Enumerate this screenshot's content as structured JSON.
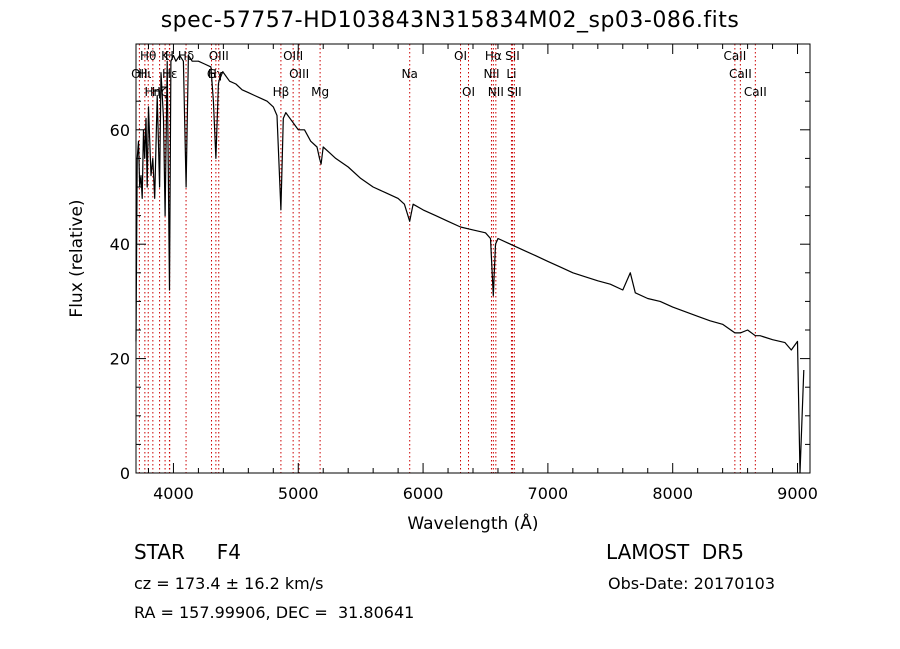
{
  "header": {
    "title": "spec-57757-HD103843N315834M02_sp03-086.fits"
  },
  "info": {
    "class": "STAR     F4",
    "survey": "LAMOST  DR5",
    "cz": "cz = 173.4 ± 16.2 km/s",
    "obs_date": "Obs-Date: 20170103",
    "radec": "RA = 157.99906, DEC =  31.80641"
  },
  "colors": {
    "spectrum": "#000000",
    "lines": "#cc0000",
    "axes": "#000000"
  },
  "chart_data": {
    "type": "line",
    "xlabel": "Wavelength (Å)",
    "ylabel": "Flux (relative)",
    "xlim": [
      3700,
      9100
    ],
    "ylim": [
      0,
      75
    ],
    "xticks": [
      4000,
      5000,
      6000,
      7000,
      8000,
      9000
    ],
    "yticks": [
      0,
      20,
      40,
      60
    ],
    "grid": false,
    "series": [
      {
        "x": [
          3700,
          3710,
          3720,
          3730,
          3740,
          3750,
          3760,
          3770,
          3780,
          3790,
          3800,
          3820,
          3835,
          3850,
          3870,
          3889,
          3900,
          3920,
          3933,
          3950,
          3968,
          3980,
          4000,
          4020,
          4050,
          4080,
          4101,
          4120,
          4150,
          4200,
          4250,
          4300,
          4320,
          4340,
          4360,
          4380,
          4400,
          4450,
          4500,
          4550,
          4600,
          4650,
          4700,
          4750,
          4800,
          4830,
          4861,
          4880,
          4900,
          4950,
          5000,
          5050,
          5100,
          5150,
          5170,
          5183,
          5200,
          5250,
          5300,
          5400,
          5500,
          5600,
          5700,
          5800,
          5850,
          5893,
          5920,
          6000,
          6100,
          6200,
          6300,
          6400,
          6500,
          6540,
          6563,
          6580,
          6600,
          6700,
          6800,
          6900,
          7000,
          7100,
          7200,
          7300,
          7400,
          7500,
          7600,
          7660,
          7700,
          7800,
          7900,
          8000,
          8100,
          8200,
          8300,
          8400,
          8498,
          8542,
          8600,
          8662,
          8700,
          8800,
          8900,
          8950,
          9000,
          9020,
          9050
        ],
        "y": [
          23,
          55,
          58,
          50,
          52,
          48,
          60,
          55,
          62,
          50,
          64,
          52,
          55,
          48,
          66,
          50,
          70,
          62,
          45,
          72,
          32,
          72,
          73,
          72,
          73,
          72,
          50,
          73,
          72,
          72,
          71.5,
          71,
          65,
          55,
          68,
          70,
          70,
          68.5,
          68,
          67,
          66.5,
          66,
          65.5,
          65,
          64,
          62.5,
          46,
          62,
          63,
          61.5,
          60,
          60,
          58,
          57,
          55,
          54,
          57,
          56,
          55,
          53.5,
          51.5,
          50,
          49,
          48,
          47,
          44,
          47,
          46,
          45,
          44,
          43,
          42.5,
          42,
          41,
          31,
          40,
          41,
          40,
          39,
          38,
          37,
          36,
          35,
          34.3,
          33.6,
          33,
          32,
          35,
          31.5,
          30.5,
          30,
          29,
          28.2,
          27.4,
          26.6,
          26,
          24.5,
          24.5,
          25,
          24,
          24,
          23.3,
          22.8,
          21.5,
          23,
          0,
          18
        ]
      }
    ],
    "line_markers": [
      {
        "name": "Hα",
        "x": 6563,
        "row": 0
      },
      {
        "name": "Hβ",
        "x": 4861,
        "row": 2
      },
      {
        "name": "Hγ",
        "x": 4340,
        "row": 1
      },
      {
        "name": "Hδ",
        "x": 4101,
        "row": 0
      },
      {
        "name": "K",
        "x": 3933,
        "row": 0
      },
      {
        "name": "H",
        "x": 3968,
        "row": 0
      },
      {
        "name": "G",
        "x": 4305,
        "row": 1
      },
      {
        "name": "Mg",
        "x": 5175,
        "row": 2
      },
      {
        "name": "Na",
        "x": 5893,
        "row": 1
      },
      {
        "name": "OI",
        "x": 6300,
        "row": 0
      },
      {
        "name": "OI",
        "x": 6364,
        "row": 2
      },
      {
        "name": "NII",
        "x": 6548,
        "row": 1
      },
      {
        "name": "NII",
        "x": 6583,
        "row": 2
      },
      {
        "name": "SII",
        "x": 6716,
        "row": 0
      },
      {
        "name": "SII",
        "x": 6731,
        "row": 2
      },
      {
        "name": "Li",
        "x": 6708,
        "row": 1
      },
      {
        "name": "OIII",
        "x": 4959,
        "row": 0
      },
      {
        "name": "OIII",
        "x": 5007,
        "row": 1
      },
      {
        "name": "OIII",
        "x": 4363,
        "row": 0
      },
      {
        "name": "OII",
        "x": 3727,
        "row": 1
      },
      {
        "name": "CaII",
        "x": 8498,
        "row": 0
      },
      {
        "name": "CaII",
        "x": 8542,
        "row": 1
      },
      {
        "name": "CaII",
        "x": 8662,
        "row": 2
      },
      {
        "name": "Hε",
        "x": 3970,
        "row": 1
      },
      {
        "name": "Hζ",
        "x": 3889,
        "row": 2
      },
      {
        "name": "Hη",
        "x": 3835,
        "row": 2
      },
      {
        "name": "Hθ",
        "x": 3798,
        "row": 0
      },
      {
        "name": "Hι",
        "x": 3771,
        "row": 1
      }
    ]
  }
}
